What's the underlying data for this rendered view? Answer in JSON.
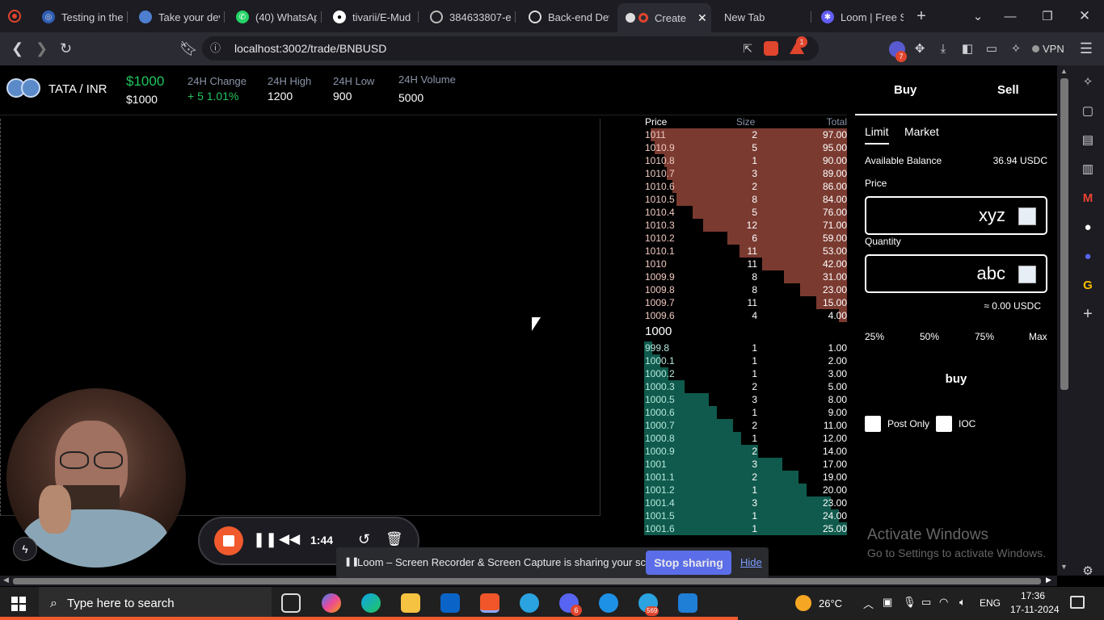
{
  "browser": {
    "tabs": [
      {
        "label": "Testing in the",
        "icon": "brave-icon"
      },
      {
        "label": "Take your dev",
        "icon": "avatar-icon"
      },
      {
        "label": "(40) WhatsAp",
        "icon": "whatsapp-icon"
      },
      {
        "label": "tivarii/E-Mud",
        "icon": "github-icon"
      },
      {
        "label": "384633807-e",
        "icon": "globe-icon"
      },
      {
        "label": "Back-end Dev",
        "icon": "openai-icon"
      },
      {
        "label": "Create",
        "icon": "loom-icon"
      },
      {
        "label": "New Tab",
        "icon": ""
      },
      {
        "label": "Loom | Free S",
        "icon": "loom-icon"
      }
    ],
    "url": "localhost:3002/trade/BNBUSD",
    "vpn_label": "VPN",
    "brave_badge": "1",
    "ext_badge": "7"
  },
  "ticker": {
    "pair": "TATA / INR",
    "price": "$1000",
    "price_sub": "$1000",
    "change_label": "24H Change",
    "change_value": "+ 5 1.01%",
    "high_label": "24H High",
    "high_value": "1200",
    "low_label": "24H Low",
    "low_value": "900",
    "volume_label": "24H Volume",
    "volume_value": "5000"
  },
  "orderbook": {
    "headers": [
      "Price",
      "Size",
      "Total"
    ],
    "mid_price": "1000",
    "asks": [
      [
        "1011",
        "2",
        "97.00"
      ],
      [
        "1010.9",
        "5",
        "95.00"
      ],
      [
        "1010.8",
        "1",
        "90.00"
      ],
      [
        "1010.7",
        "3",
        "89.00"
      ],
      [
        "1010.6",
        "2",
        "86.00"
      ],
      [
        "1010.5",
        "8",
        "84.00"
      ],
      [
        "1010.4",
        "5",
        "76.00"
      ],
      [
        "1010.3",
        "12",
        "71.00"
      ],
      [
        "1010.2",
        "6",
        "59.00"
      ],
      [
        "1010.1",
        "11",
        "53.00"
      ],
      [
        "1010",
        "11",
        "42.00"
      ],
      [
        "1009.9",
        "8",
        "31.00"
      ],
      [
        "1009.8",
        "8",
        "23.00"
      ],
      [
        "1009.7",
        "11",
        "15.00"
      ],
      [
        "1009.6",
        "4",
        "4.00"
      ]
    ],
    "bids": [
      [
        "999.8",
        "1",
        "1.00"
      ],
      [
        "1000.1",
        "1",
        "2.00"
      ],
      [
        "1000.2",
        "1",
        "3.00"
      ],
      [
        "1000.3",
        "2",
        "5.00"
      ],
      [
        "1000.5",
        "3",
        "8.00"
      ],
      [
        "1000.6",
        "1",
        "9.00"
      ],
      [
        "1000.7",
        "2",
        "11.00"
      ],
      [
        "1000.8",
        "1",
        "12.00"
      ],
      [
        "1000.9",
        "2",
        "14.00"
      ],
      [
        "1001",
        "3",
        "17.00"
      ],
      [
        "1001.1",
        "2",
        "19.00"
      ],
      [
        "1001.2",
        "1",
        "20.00"
      ],
      [
        "1001.4",
        "3",
        "23.00"
      ],
      [
        "1001.5",
        "1",
        "24.00"
      ],
      [
        "1001.6",
        "1",
        "25.00"
      ]
    ],
    "colors": {
      "ask": "#7a3a30",
      "bid": "#0f5a4c"
    }
  },
  "order_panel": {
    "buy_tab": "Buy",
    "sell_tab": "Sell",
    "limit_tab": "Limit",
    "market_tab": "Market",
    "balance_label": "Available Balance",
    "balance_value": "36.94 USDC",
    "price_label": "Price",
    "price_value": "xyz",
    "quantity_label": "Quantity",
    "quantity_value": "abc",
    "approx": "≈ 0.00 USDC",
    "pcts": [
      "25%",
      "50%",
      "75%",
      "Max"
    ],
    "buy_button": "buy",
    "post_only": "Post Only",
    "ioc": "IOC"
  },
  "watermark": {
    "line1": "Activate Windows",
    "line2": "Go to Settings to activate Windows."
  },
  "loom": {
    "timer": "1:44",
    "sharing_text": "Loom – Screen Recorder & Screen Capture is sharing your screen.",
    "stop_label": "Stop sharing",
    "hide_label": "Hide"
  },
  "taskbar": {
    "search_placeholder": "Type here to search",
    "weather": "26°C",
    "lang": "ENG",
    "time": "17:36",
    "date": "17-11-2024",
    "badge_a": "6",
    "badge_b": "569"
  }
}
